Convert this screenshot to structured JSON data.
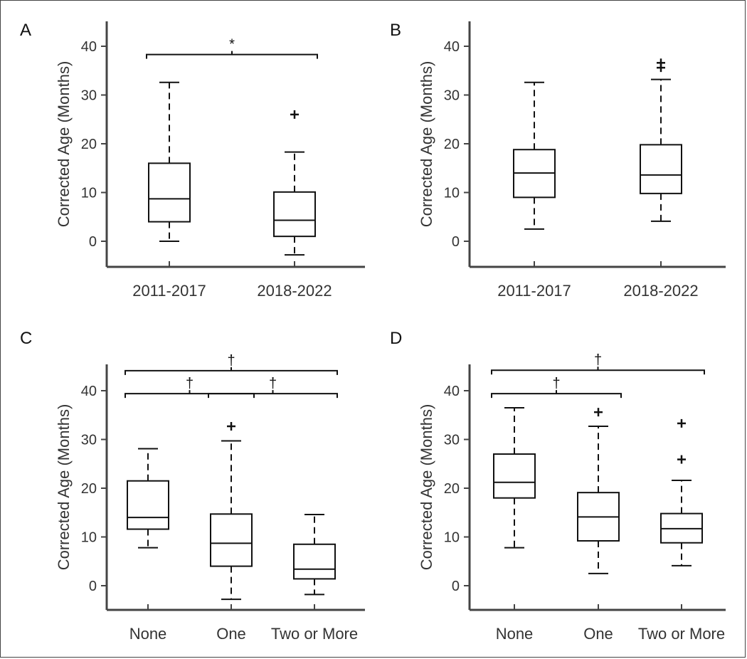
{
  "chart_data": [
    {
      "panel": "A",
      "type": "box",
      "ylabel": "Corrected Age (Months)",
      "ylim": [
        -5,
        45
      ],
      "yticks": [
        0,
        10,
        20,
        30,
        40
      ],
      "categories": [
        "2011-2017",
        "2018-2022"
      ],
      "boxes": [
        {
          "category": "2011-2017",
          "min": 0,
          "q1": 4,
          "median": 8.7,
          "q3": 16,
          "max": 32.6,
          "outliers": []
        },
        {
          "category": "2018-2022",
          "min": -2.8,
          "q1": 1,
          "median": 4.3,
          "q3": 10.1,
          "max": 18.3,
          "outliers": [
            26
          ]
        }
      ],
      "significance": [
        {
          "from": 0,
          "to": 1,
          "y": 38.3,
          "symbol": "*"
        }
      ]
    },
    {
      "panel": "B",
      "type": "box",
      "ylabel": "Corrected Age (Months)",
      "ylim": [
        -5,
        45
      ],
      "yticks": [
        0,
        10,
        20,
        30,
        40
      ],
      "categories": [
        "2011-2017",
        "2018-2022"
      ],
      "boxes": [
        {
          "category": "2011-2017",
          "min": 2.5,
          "q1": 9,
          "median": 14,
          "q3": 18.8,
          "max": 32.6,
          "outliers": []
        },
        {
          "category": "2018-2022",
          "min": 4.1,
          "q1": 9.8,
          "median": 13.6,
          "q3": 19.8,
          "max": 33.2,
          "outliers": [
            35.6,
            36.6
          ]
        }
      ],
      "significance": []
    },
    {
      "panel": "C",
      "type": "box",
      "ylabel": "Corrected Age (Months)",
      "ylim": [
        -5,
        45
      ],
      "yticks": [
        0,
        10,
        20,
        30,
        40
      ],
      "categories": [
        "None",
        "One",
        "Two or More"
      ],
      "boxes": [
        {
          "category": "None",
          "min": 7.8,
          "q1": 11.6,
          "median": 14,
          "q3": 21.5,
          "max": 28.1,
          "outliers": []
        },
        {
          "category": "One",
          "min": -2.8,
          "q1": 4,
          "median": 8.7,
          "q3": 14.7,
          "max": 29.7,
          "outliers": [
            32.7
          ]
        },
        {
          "category": "Two or More",
          "min": -1.8,
          "q1": 1.4,
          "median": 3.4,
          "q3": 8.5,
          "max": 14.6,
          "outliers": []
        }
      ],
      "significance": [
        {
          "from": 0,
          "to": 2,
          "y": 44.1,
          "symbol": "†"
        },
        {
          "from": 0,
          "to": 1,
          "y": 39.4,
          "symbol": "†"
        },
        {
          "from": 1,
          "to": 2,
          "y": 39.4,
          "symbol": "†"
        }
      ]
    },
    {
      "panel": "D",
      "type": "box",
      "ylabel": "Corrected Age (Months)",
      "ylim": [
        -5,
        45
      ],
      "yticks": [
        0,
        10,
        20,
        30,
        40
      ],
      "categories": [
        "None",
        "One",
        "Two or More"
      ],
      "boxes": [
        {
          "category": "None",
          "min": 7.8,
          "q1": 18,
          "median": 21.2,
          "q3": 27,
          "max": 36.5,
          "outliers": []
        },
        {
          "category": "One",
          "min": 2.5,
          "q1": 9.2,
          "median": 14.1,
          "q3": 19.1,
          "max": 32.7,
          "outliers": [
            35.6
          ]
        },
        {
          "category": "Two or More",
          "min": 4.1,
          "q1": 8.8,
          "median": 11.7,
          "q3": 14.8,
          "max": 21.6,
          "outliers": [
            25.9,
            33.3
          ]
        }
      ],
      "significance": [
        {
          "from": 0,
          "to": 2,
          "y": 44.2,
          "symbol": "†"
        },
        {
          "from": 0,
          "to": 1,
          "y": 39.4,
          "symbol": "†"
        }
      ]
    }
  ]
}
